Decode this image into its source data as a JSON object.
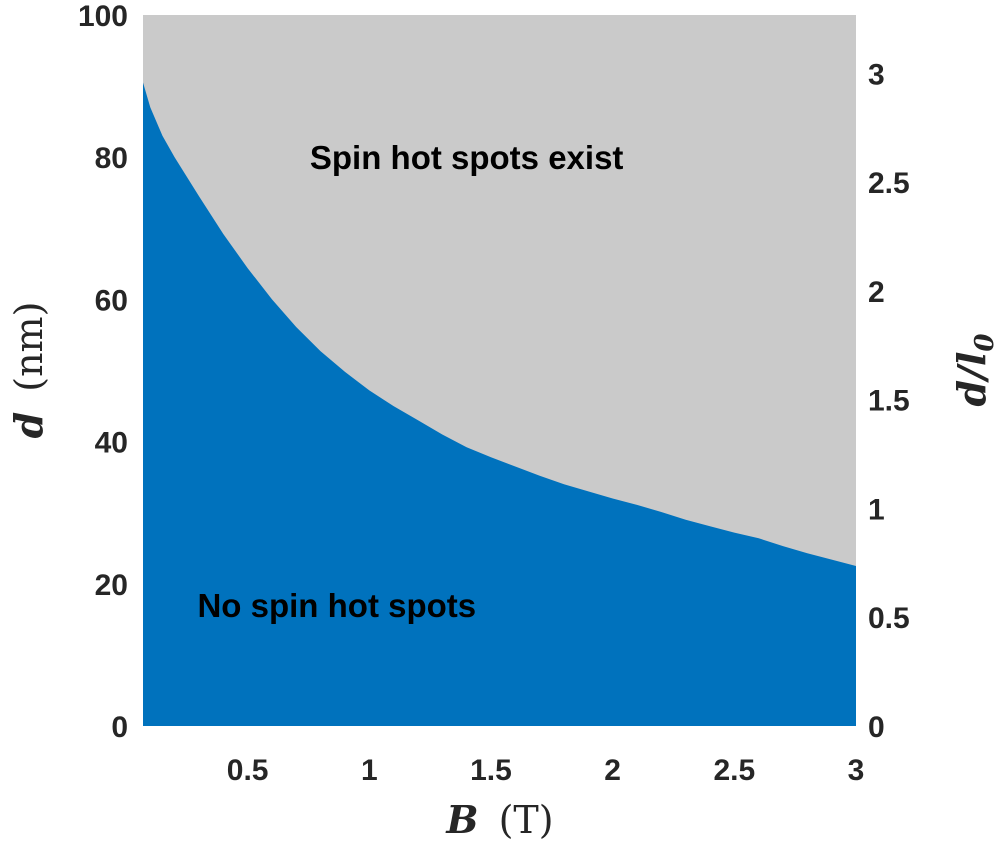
{
  "chart_data": {
    "type": "area",
    "xlabel": {
      "var": "B",
      "unit": "(T)"
    },
    "ylabel": {
      "var": "d",
      "unit": "(nm)"
    },
    "y2label": {
      "text": "d/l",
      "sub": "0"
    },
    "xlim": [
      0.07,
      3
    ],
    "ylim": [
      0,
      100
    ],
    "y2lim": [
      0,
      3.268
    ],
    "xticks": [
      0.5,
      1,
      1.5,
      2,
      2.5,
      3
    ],
    "xtick_labels": [
      "0.5",
      "1",
      "1.5",
      "2",
      "2.5",
      "3"
    ],
    "yticks": [
      0,
      20,
      40,
      60,
      80,
      100
    ],
    "ytick_labels": [
      "0",
      "20",
      "40",
      "60",
      "80",
      "100"
    ],
    "y2ticks": [
      0,
      0.5,
      1,
      1.5,
      2,
      2.5,
      3
    ],
    "y2tick_labels": [
      "0",
      "0.5",
      "1",
      "1.5",
      "2",
      "2.5",
      "3"
    ],
    "grid": false,
    "regions": {
      "below": {
        "label": "No spin hot spots",
        "color": "#0072BD",
        "label_pos": [
          0.25,
          17
        ]
      },
      "above": {
        "label": "Spin hot spots exist",
        "color": "#CACACA",
        "label_pos": [
          1.4,
          80
        ]
      }
    },
    "boundary": {
      "x": [
        0.07,
        0.1,
        0.15,
        0.2,
        0.3,
        0.4,
        0.5,
        0.6,
        0.7,
        0.8,
        0.9,
        1.0,
        1.1,
        1.2,
        1.3,
        1.4,
        1.5,
        1.6,
        1.7,
        1.8,
        1.9,
        2.0,
        2.1,
        2.2,
        2.3,
        2.4,
        2.5,
        2.6,
        2.7,
        2.8,
        2.9,
        3.0
      ],
      "y": [
        90.5,
        87,
        83,
        80,
        74.5,
        69.2,
        64.4,
        60,
        56.1,
        52.7,
        49.8,
        47.2,
        45,
        43,
        41,
        39.2,
        37.8,
        36.5,
        35.2,
        34,
        33,
        32,
        31.1,
        30.1,
        29,
        28.1,
        27.2,
        26.4,
        25.3,
        24.3,
        23.4,
        22.5
      ]
    }
  }
}
